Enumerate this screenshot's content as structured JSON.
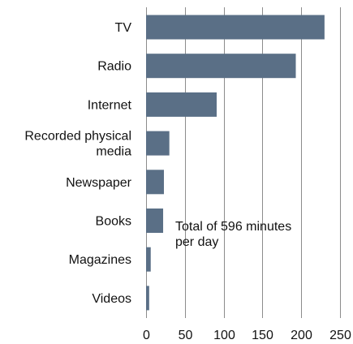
{
  "chart_data": {
    "type": "bar",
    "orientation": "horizontal",
    "categories": [
      [
        "TV"
      ],
      [
        "Radio"
      ],
      [
        "Internet"
      ],
      [
        "Recorded physical",
        "media"
      ],
      [
        "Newspaper"
      ],
      [
        "Books"
      ],
      [
        "Magazines"
      ],
      [
        "Videos"
      ]
    ],
    "values": [
      230,
      193,
      91,
      30,
      23,
      22,
      6,
      4
    ],
    "xlim": [
      0,
      250
    ],
    "xticks": [
      0,
      50,
      100,
      150,
      200,
      250
    ],
    "grid": "vertical",
    "title": "",
    "xlabel": "",
    "ylabel": "",
    "bar_color": "#5a6f86",
    "grid_color": "#8c8c8c",
    "annotation": [
      "Total of 596 minutes",
      "per day"
    ]
  }
}
